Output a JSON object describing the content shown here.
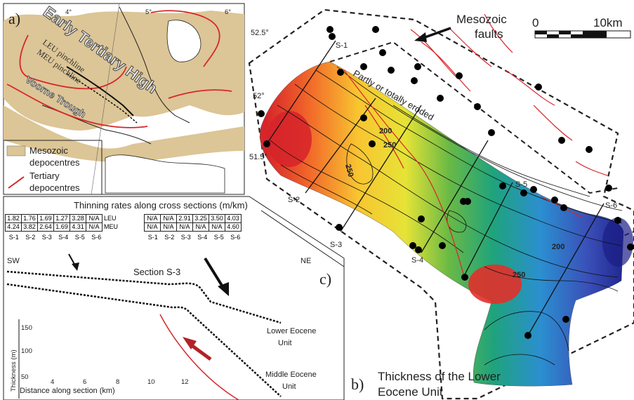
{
  "panel_a": {
    "label": "a)",
    "longitudes": [
      "4°",
      "5°",
      "6°"
    ],
    "latitudes": [
      "52.5°",
      "52°",
      "51.5°"
    ],
    "high_label": "Early Tertiary High",
    "trough_label": "Voorne Trough",
    "leu_label": "LEU pinchline",
    "meu_label": "MEU pinchline",
    "legend": {
      "mesozoic_line1": "Mesozoic",
      "mesozoic_line2": "depocentres",
      "tertiary_line1": "Tertiary",
      "tertiary_line2": "depocentres"
    },
    "colors": {
      "depocentre_fill": "#dcc596",
      "tertiary_line": "#d8262a"
    }
  },
  "panel_c": {
    "label": "c)",
    "rates_title": "Thinning rates along cross sections (m/km)",
    "row_leu": "LEU",
    "row_meu": "MEU",
    "left_leu": [
      "1.82",
      "1.76",
      "1.69",
      "1.27",
      "3.28",
      "N/A"
    ],
    "left_meu": [
      "4.24",
      "3.82",
      "2.64",
      "1.69",
      "4.31",
      "N/A"
    ],
    "right_leu": [
      "N/A",
      "N/A",
      "2.91",
      "3.25",
      "3.50",
      "4.03"
    ],
    "right_meu": [
      "N/A",
      "N/A",
      "N/A",
      "N/A",
      "N/A",
      "4.60"
    ],
    "sections": [
      "S-1",
      "S-2",
      "S-3",
      "S-4",
      "S-5",
      "S-6"
    ],
    "sw": "SW",
    "ne": "NE",
    "section_title": "Section S-3",
    "lower_unit_line1": "Lower Eocene",
    "lower_unit_line2": "Unit",
    "middle_unit_line1": "Middle Eocene",
    "middle_unit_line2": "Unit",
    "y_axis_label": "Thickness (m)",
    "y_ticks": [
      "150",
      "100",
      "50"
    ],
    "x_axis_label": "Distance along section (km)",
    "x_ticks": [
      "4",
      "6",
      "8",
      "10",
      "12"
    ]
  },
  "panel_b": {
    "label": "b)",
    "title_line1": "Thickness of the Lower",
    "title_line2": "Eocene Unit",
    "faults_line1": "Mesozoic",
    "faults_line2": "faults",
    "scale_start": "0",
    "scale_end": "10km",
    "eroded_label": "Partly or totally eroded",
    "contours": [
      "200",
      "250",
      "250",
      "200",
      "250"
    ],
    "section_labels": [
      "S-1",
      "S-2",
      "S-3",
      "S-4",
      "S-5",
      "S-6"
    ]
  }
}
